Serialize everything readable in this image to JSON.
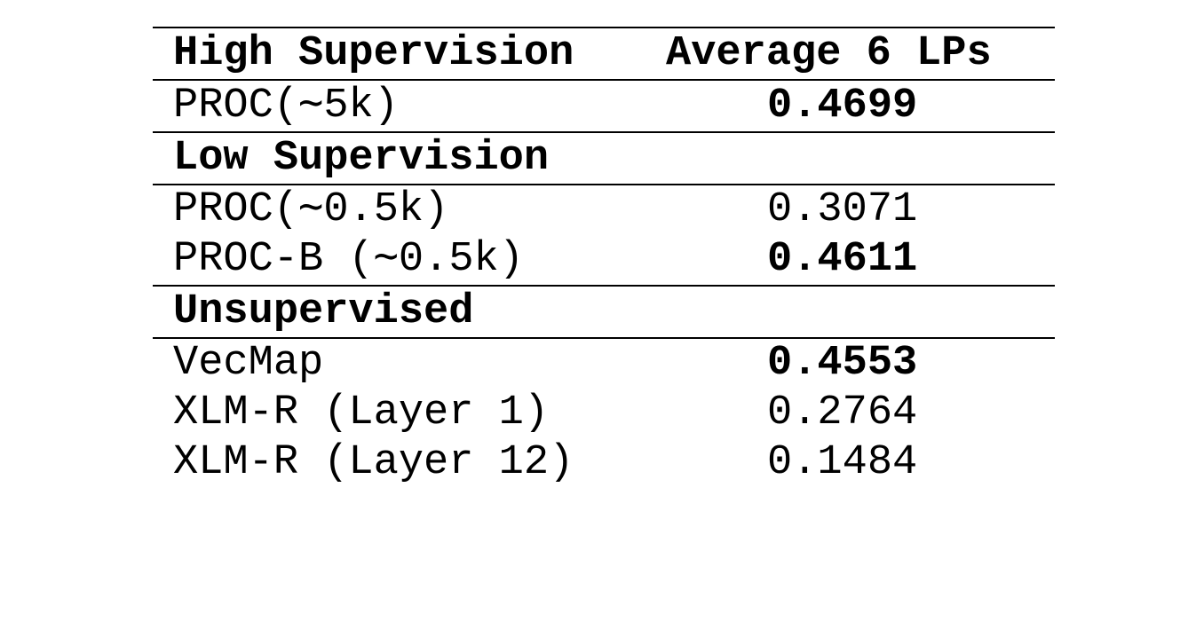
{
  "table": {
    "header": {
      "col_method": "High Supervision",
      "col_score": "Average 6 LPs"
    },
    "high_supervision": {
      "rows": [
        {
          "method": "PROC(∼5k)",
          "score": "0.4699",
          "best": true
        }
      ]
    },
    "low_supervision": {
      "label": "Low Supervision",
      "rows": [
        {
          "method": "PROC(∼0.5k)",
          "score": "0.3071",
          "best": false
        },
        {
          "method": "PROC-B (∼0.5k)",
          "score": "0.4611",
          "best": true
        }
      ]
    },
    "unsupervised": {
      "label": "Unsupervised",
      "rows": [
        {
          "method": "VecMap",
          "score": "0.4553",
          "best": true
        },
        {
          "method": "XLM-R (Layer 1)",
          "score": "0.2764",
          "best": false
        },
        {
          "method": "XLM-R (Layer 12)",
          "score": "0.1484",
          "best": false
        }
      ]
    }
  }
}
